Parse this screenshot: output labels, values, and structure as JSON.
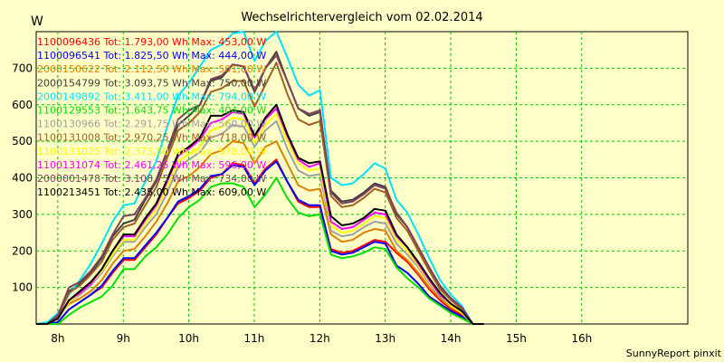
{
  "chart_data": {
    "type": "line",
    "title": "Wechselrichtervergleich vom 02.02.2014",
    "ylabel": "W",
    "footer": "SunnyReport pinxit",
    "x_hour_start": 7.67,
    "x_step_hours": 0.1667,
    "xlim": [
      7.67,
      17.62
    ],
    "ylim": [
      0,
      800
    ],
    "x_ticks": [
      {
        "value": 8,
        "label": "8h"
      },
      {
        "value": 9,
        "label": "9h"
      },
      {
        "value": 10,
        "label": "10h"
      },
      {
        "value": 11,
        "label": "11h"
      },
      {
        "value": 12,
        "label": "12h"
      },
      {
        "value": 13,
        "label": "13h"
      },
      {
        "value": 14,
        "label": "14h"
      },
      {
        "value": 15,
        "label": "15h"
      },
      {
        "value": 16,
        "label": "16h"
      }
    ],
    "y_ticks": [
      {
        "value": 100,
        "label": "100"
      },
      {
        "value": 200,
        "label": "200"
      },
      {
        "value": 300,
        "label": "300"
      },
      {
        "value": 400,
        "label": "400"
      },
      {
        "value": 500,
        "label": "500"
      },
      {
        "value": 600,
        "label": "600"
      },
      {
        "value": 700,
        "label": "700"
      }
    ],
    "grid": true,
    "legend_position": "top-left",
    "series": [
      {
        "name": "1100096436",
        "label": "1100096436 Tot: 1.793,00 Wh Max: 453,00 W",
        "color": "#ff0000",
        "values": [
          0,
          0,
          5,
          40,
          60,
          80,
          100,
          140,
          175,
          175,
          210,
          245,
          290,
          330,
          345,
          365,
          400,
          410,
          440,
          435,
          385,
          425,
          450,
          390,
          335,
          320,
          320,
          205,
          195,
          200,
          215,
          230,
          225,
          195,
          170,
          135,
          95,
          65,
          40,
          25,
          0,
          0
        ]
      },
      {
        "name": "1100096541",
        "label": "1100096541 Tot: 1.825,50 Wh Max: 444,00 W",
        "color": "#0000ff",
        "values": [
          0,
          0,
          5,
          40,
          60,
          80,
          105,
          145,
          180,
          180,
          215,
          250,
          290,
          335,
          350,
          370,
          405,
          410,
          435,
          430,
          380,
          420,
          445,
          390,
          340,
          325,
          325,
          200,
          190,
          195,
          210,
          225,
          220,
          160,
          140,
          110,
          75,
          55,
          35,
          20,
          0,
          0
        ]
      },
      {
        "name": "2000150622",
        "label": "2000150622 Tot: 2.112,50 Wh Max: 501,00 W",
        "color": "#e08000",
        "values": [
          0,
          0,
          20,
          55,
          70,
          90,
          120,
          165,
          200,
          205,
          240,
          280,
          330,
          390,
          405,
          430,
          465,
          475,
          500,
          495,
          440,
          485,
          500,
          440,
          380,
          365,
          370,
          245,
          225,
          230,
          250,
          260,
          255,
          200,
          175,
          140,
          100,
          70,
          45,
          30,
          0,
          0
        ]
      },
      {
        "name": "2000154799",
        "label": "2000154799 Tot: 3.093,75 Wh Max: 750,00 W",
        "color": "#404040",
        "values": [
          0,
          0,
          20,
          90,
          110,
          140,
          180,
          240,
          275,
          285,
          340,
          390,
          470,
          545,
          570,
          600,
          665,
          675,
          710,
          705,
          635,
          700,
          745,
          665,
          590,
          570,
          580,
          365,
          335,
          340,
          360,
          385,
          375,
          300,
          265,
          210,
          155,
          100,
          70,
          45,
          0,
          0
        ]
      },
      {
        "name": "2000149892",
        "label": "2000149892 Tot: 3.411,00 Wh Max: 794,00 W",
        "color": "#00e0ff",
        "values": [
          0,
          5,
          30,
          80,
          120,
          165,
          220,
          280,
          325,
          330,
          390,
          445,
          540,
          625,
          660,
          705,
          750,
          765,
          795,
          800,
          720,
          775,
          800,
          730,
          655,
          625,
          640,
          400,
          380,
          385,
          410,
          440,
          425,
          340,
          305,
          245,
          180,
          120,
          80,
          50,
          0,
          0
        ]
      },
      {
        "name": "1100129553",
        "label": "1100129553 Tot: 1.643,75 Wh Max: 404,00 W",
        "color": "#00e000",
        "values": [
          0,
          0,
          0,
          25,
          45,
          60,
          75,
          105,
          150,
          150,
          185,
          210,
          245,
          290,
          320,
          340,
          375,
          385,
          385,
          375,
          320,
          355,
          400,
          345,
          305,
          295,
          300,
          190,
          180,
          185,
          195,
          210,
          205,
          155,
          125,
          100,
          70,
          50,
          30,
          15,
          0,
          0
        ]
      },
      {
        "name": "1100130966",
        "label": "1100130966 Tot: 2.291,75 Wh Max: 560,00 W",
        "color": "#a0a0a0",
        "values": [
          0,
          0,
          15,
          60,
          80,
          105,
          140,
          185,
          225,
          225,
          265,
          300,
          360,
          430,
          450,
          470,
          510,
          520,
          545,
          540,
          485,
          530,
          555,
          480,
          420,
          405,
          410,
          255,
          240,
          245,
          265,
          280,
          275,
          220,
          190,
          155,
          110,
          75,
          50,
          30,
          0,
          0
        ]
      },
      {
        "name": "1100131008",
        "label": "1100131008 Tot: 2.970,25 Wh Max: 718,00 W",
        "color": "#a06020",
        "values": [
          0,
          0,
          20,
          85,
          105,
          135,
          170,
          230,
          265,
          275,
          325,
          375,
          455,
          530,
          550,
          580,
          635,
          645,
          665,
          665,
          595,
          655,
          715,
          630,
          560,
          545,
          555,
          350,
          320,
          325,
          345,
          370,
          360,
          290,
          255,
          200,
          145,
          95,
          65,
          40,
          0,
          0
        ]
      },
      {
        "name": "1100131025",
        "label": "1100131025 Tot: 2.373,50 Wh Max: 578,00 W",
        "color": "#ffff00",
        "values": [
          0,
          0,
          15,
          60,
          85,
          110,
          145,
          190,
          230,
          230,
          275,
          315,
          375,
          445,
          465,
          485,
          530,
          540,
          565,
          560,
          495,
          545,
          575,
          500,
          440,
          420,
          425,
          270,
          250,
          255,
          275,
          295,
          290,
          230,
          200,
          160,
          115,
          80,
          50,
          30,
          0,
          0
        ]
      },
      {
        "name": "1100131074",
        "label": "1100131074 Tot: 2.461,25 Wh Max: 596,00 W",
        "color": "#ff00ff",
        "values": [
          0,
          0,
          15,
          65,
          85,
          110,
          150,
          200,
          240,
          240,
          285,
          325,
          390,
          460,
          480,
          505,
          550,
          560,
          580,
          575,
          510,
          560,
          590,
          515,
          450,
          430,
          440,
          280,
          260,
          265,
          285,
          305,
          300,
          240,
          210,
          165,
          120,
          80,
          55,
          35,
          0,
          0
        ]
      },
      {
        "name": "2000001478",
        "label": "2000001478 Tot: 3.108,75 Wh Max: 734,00 W",
        "color": "#804060",
        "values": [
          0,
          0,
          25,
          100,
          115,
          145,
          185,
          245,
          295,
          300,
          345,
          395,
          475,
          560,
          585,
          600,
          670,
          680,
          710,
          705,
          640,
          700,
          735,
          665,
          590,
          575,
          585,
          360,
          330,
          335,
          355,
          380,
          370,
          305,
          265,
          210,
          155,
          105,
          70,
          45,
          0,
          0
        ]
      },
      {
        "name": "1100213451",
        "label": "1100213451 Tot: 2.435,00 Wh Max: 609,00 W",
        "color": "#000000",
        "values": [
          0,
          0,
          15,
          65,
          90,
          115,
          150,
          200,
          245,
          245,
          290,
          330,
          395,
          465,
          485,
          510,
          570,
          570,
          585,
          580,
          515,
          565,
          600,
          520,
          455,
          440,
          445,
          295,
          270,
          275,
          290,
          315,
          310,
          245,
          210,
          170,
          125,
          85,
          55,
          35,
          0,
          0
        ]
      }
    ]
  }
}
